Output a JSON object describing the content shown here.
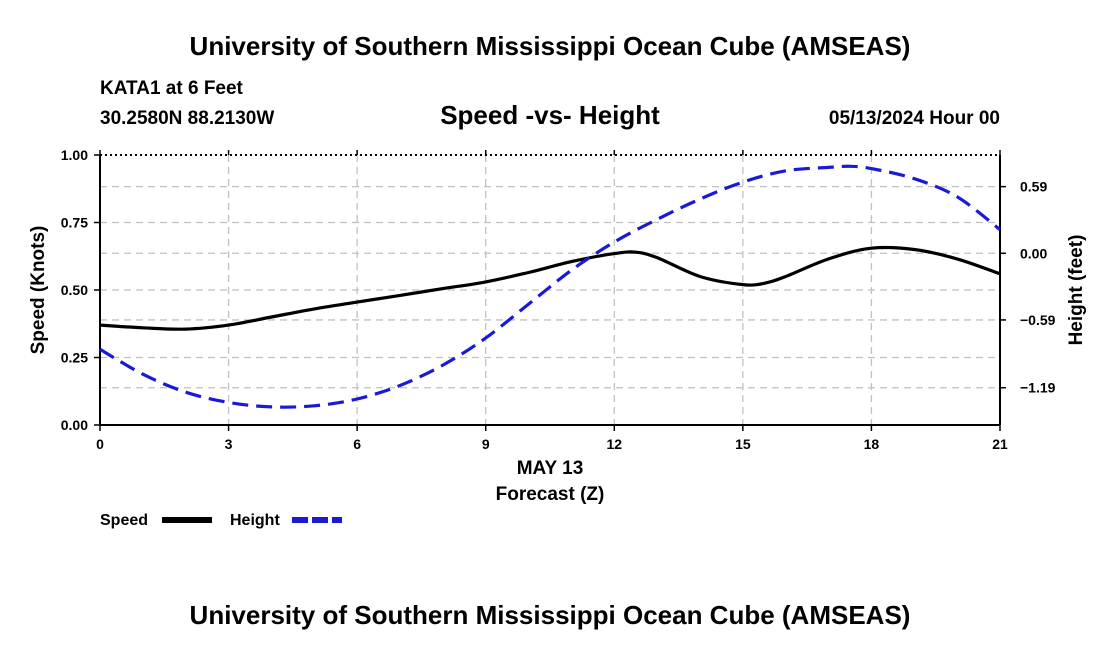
{
  "header": {
    "title": "University of Southern Mississippi Ocean Cube (AMSEAS)",
    "station": "KATA1 at 6 Feet",
    "coords": "30.2580N  88.2130W",
    "datetime": "05/13/2024 Hour 00",
    "footer_title": "University of Southern Mississippi Ocean Cube (AMSEAS)"
  },
  "colors": {
    "speed": "#000000",
    "height": "#1a1ad6",
    "grid": "#c0c0c0"
  },
  "chart_data": {
    "type": "line",
    "title": "Speed -vs- Height",
    "xlabel_date": "MAY 13",
    "xlabel": "Forecast (Z)",
    "ylabel": "Speed (Knots)",
    "ylabel_right": "Height (feet)",
    "xlim": [
      0,
      21
    ],
    "ylim": [
      0,
      1
    ],
    "ylim_right": [
      -1.52,
      0.87
    ],
    "x_ticks": [
      "0",
      "3",
      "6",
      "9",
      "12",
      "15",
      "18",
      "21"
    ],
    "y_ticks": [
      "0.00",
      "0.25",
      "0.50",
      "0.75",
      "1.00"
    ],
    "y_tick_values": [
      0,
      0.25,
      0.5,
      0.75,
      1.0
    ],
    "y_right_ticks": [
      "−1.19",
      "−0.59",
      "0.00",
      "0.59"
    ],
    "y_right_tick_values": [
      -1.19,
      -0.59,
      0.0,
      0.59
    ],
    "series": [
      {
        "name": "Speed",
        "axis": "left",
        "x": [
          0,
          1,
          2,
          3,
          4,
          5,
          6,
          7,
          8,
          9,
          10,
          11,
          12,
          12.5,
          13,
          14,
          15,
          15.5,
          16,
          17,
          18,
          19,
          20,
          21
        ],
        "values": [
          0.37,
          0.36,
          0.355,
          0.37,
          0.4,
          0.43,
          0.455,
          0.48,
          0.505,
          0.53,
          0.565,
          0.605,
          0.635,
          0.64,
          0.62,
          0.55,
          0.52,
          0.525,
          0.55,
          0.615,
          0.655,
          0.65,
          0.615,
          0.56
        ]
      },
      {
        "name": "Height",
        "axis": "right",
        "x": [
          0,
          1,
          2,
          3,
          4,
          5,
          6,
          7,
          8,
          9,
          10,
          11,
          12,
          13,
          14,
          15,
          16,
          17,
          17.5,
          18,
          19,
          20,
          21
        ],
        "values": [
          -0.85,
          -1.07,
          -1.23,
          -1.32,
          -1.36,
          -1.35,
          -1.29,
          -1.17,
          -0.99,
          -0.75,
          -0.45,
          -0.15,
          0.1,
          0.3,
          0.48,
          0.63,
          0.73,
          0.76,
          0.77,
          0.75,
          0.66,
          0.5,
          0.21
        ]
      }
    ],
    "legend": {
      "speed_label": "Speed",
      "height_label": "Height",
      "placement": "bottom-left"
    }
  }
}
